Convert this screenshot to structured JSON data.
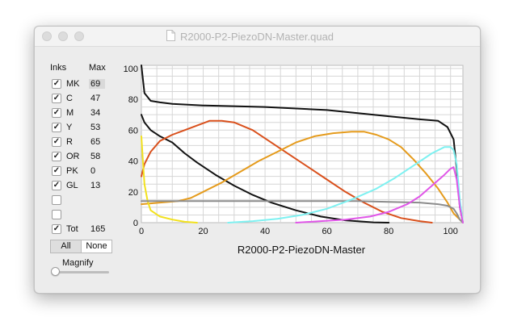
{
  "window": {
    "title": "R2000-P2-PiezoDN-Master.quad"
  },
  "panel": {
    "inks_header": "Inks",
    "max_header": "Max",
    "inks": [
      {
        "name": "MK",
        "max": "69",
        "checked": true,
        "highlight": true
      },
      {
        "name": "C",
        "max": "47",
        "checked": true
      },
      {
        "name": "M",
        "max": "34",
        "checked": true
      },
      {
        "name": "Y",
        "max": "53",
        "checked": true
      },
      {
        "name": "R",
        "max": "65",
        "checked": true
      },
      {
        "name": "OR",
        "max": "58",
        "checked": true
      },
      {
        "name": "PK",
        "max": "0",
        "checked": true
      },
      {
        "name": "GL",
        "max": "13",
        "checked": true
      },
      {
        "name": "",
        "max": "",
        "checked": false
      },
      {
        "name": "",
        "max": "",
        "checked": false
      },
      {
        "name": "Tot",
        "max": "165",
        "checked": true
      }
    ],
    "all_button": "All",
    "none_button": "None",
    "magnify_label": "Magnify",
    "magnify_value": 0
  },
  "chart_data": {
    "type": "line",
    "title": "R2000-P2-PiezoDN-Master",
    "xlim": [
      0,
      104
    ],
    "ylim": [
      0,
      102
    ],
    "x_ticks": [
      0,
      20,
      40,
      60,
      80,
      100
    ],
    "y_ticks": [
      0,
      20,
      40,
      60,
      80,
      100
    ],
    "grid": true,
    "series": [
      {
        "color": "#111111",
        "points": [
          [
            0,
            102
          ],
          [
            1,
            84
          ],
          [
            3,
            79
          ],
          [
            6,
            78
          ],
          [
            10,
            77
          ],
          [
            20,
            76
          ],
          [
            40,
            75
          ],
          [
            60,
            73
          ],
          [
            80,
            69
          ],
          [
            90,
            67
          ],
          [
            96,
            66
          ],
          [
            99,
            62
          ],
          [
            101,
            54
          ],
          [
            102,
            35
          ],
          [
            103,
            10
          ],
          [
            104,
            0
          ]
        ]
      },
      {
        "color": "#111111",
        "points": [
          [
            0,
            70
          ],
          [
            1,
            65
          ],
          [
            3,
            60
          ],
          [
            6,
            56
          ],
          [
            10,
            52
          ],
          [
            14,
            45
          ],
          [
            18,
            39
          ],
          [
            24,
            31
          ],
          [
            30,
            24
          ],
          [
            36,
            18
          ],
          [
            42,
            13
          ],
          [
            50,
            8
          ],
          [
            58,
            4
          ],
          [
            66,
            1.5
          ],
          [
            75,
            0.2
          ],
          [
            80,
            0
          ]
        ]
      },
      {
        "color": "#d9501c",
        "points": [
          [
            0,
            30
          ],
          [
            1,
            38
          ],
          [
            3,
            46
          ],
          [
            6,
            53
          ],
          [
            10,
            57
          ],
          [
            14,
            60
          ],
          [
            18,
            63
          ],
          [
            22,
            66
          ],
          [
            26,
            66
          ],
          [
            30,
            65
          ],
          [
            36,
            60
          ],
          [
            42,
            52
          ],
          [
            48,
            44
          ],
          [
            54,
            36
          ],
          [
            60,
            28
          ],
          [
            66,
            20
          ],
          [
            72,
            13
          ],
          [
            78,
            7
          ],
          [
            84,
            3
          ],
          [
            90,
            1
          ],
          [
            94,
            0
          ]
        ]
      },
      {
        "color": "#e59b1c",
        "points": [
          [
            0,
            12
          ],
          [
            6,
            13
          ],
          [
            12,
            14
          ],
          [
            16,
            16
          ],
          [
            20,
            20
          ],
          [
            26,
            26
          ],
          [
            32,
            33
          ],
          [
            38,
            40
          ],
          [
            44,
            46
          ],
          [
            50,
            52
          ],
          [
            56,
            56
          ],
          [
            62,
            58
          ],
          [
            68,
            59
          ],
          [
            72,
            59
          ],
          [
            76,
            57
          ],
          [
            80,
            54
          ],
          [
            84,
            49
          ],
          [
            88,
            41
          ],
          [
            92,
            32
          ],
          [
            96,
            22
          ],
          [
            99,
            13
          ],
          [
            101,
            6
          ],
          [
            103,
            2
          ],
          [
            104,
            0
          ]
        ]
      },
      {
        "color": "#f2e11c",
        "points": [
          [
            0,
            56
          ],
          [
            0.5,
            40
          ],
          [
            1,
            25
          ],
          [
            2,
            14
          ],
          [
            3,
            8
          ],
          [
            6,
            4
          ],
          [
            10,
            2
          ],
          [
            14,
            0.6
          ],
          [
            18,
            0
          ]
        ]
      },
      {
        "color": "#8c8c8c",
        "points": [
          [
            0,
            14
          ],
          [
            10,
            14
          ],
          [
            20,
            14
          ],
          [
            30,
            14
          ],
          [
            40,
            14
          ],
          [
            50,
            14
          ],
          [
            60,
            14
          ],
          [
            70,
            14
          ],
          [
            80,
            13.5
          ],
          [
            90,
            13
          ],
          [
            96,
            12
          ],
          [
            99,
            11
          ],
          [
            101,
            9
          ],
          [
            102,
            6
          ],
          [
            103,
            2
          ],
          [
            104,
            0
          ]
        ]
      },
      {
        "color": "#7ef1f1",
        "points": [
          [
            28,
            0
          ],
          [
            36,
            1
          ],
          [
            44,
            2.5
          ],
          [
            52,
            5
          ],
          [
            60,
            9
          ],
          [
            68,
            15
          ],
          [
            76,
            22
          ],
          [
            82,
            29
          ],
          [
            88,
            37
          ],
          [
            94,
            45
          ],
          [
            98,
            49
          ],
          [
            100,
            49
          ],
          [
            101,
            47
          ],
          [
            102,
            38
          ],
          [
            103,
            15
          ],
          [
            104,
            0
          ]
        ]
      },
      {
        "color": "#e056e8",
        "points": [
          [
            50,
            0
          ],
          [
            58,
            1
          ],
          [
            66,
            2
          ],
          [
            74,
            4
          ],
          [
            80,
            7
          ],
          [
            86,
            12
          ],
          [
            90,
            17
          ],
          [
            94,
            24
          ],
          [
            98,
            31
          ],
          [
            100,
            35
          ],
          [
            101,
            36
          ],
          [
            102,
            28
          ],
          [
            103,
            10
          ],
          [
            104,
            0
          ]
        ]
      }
    ]
  }
}
